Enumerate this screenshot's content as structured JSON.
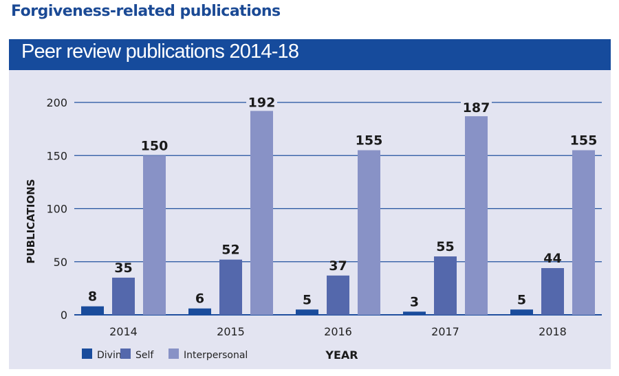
{
  "header": {
    "title": "Forgiveness-related publications"
  },
  "chart_data": {
    "type": "bar",
    "title": "Peer review publications 2014-18",
    "xlabel": "YEAR",
    "ylabel": "PUBLICATIONS",
    "ylim": [
      0,
      200
    ],
    "yticks": [
      0,
      50,
      100,
      150,
      200
    ],
    "grid": true,
    "legend_position": "bottom-left",
    "categories": [
      "2014",
      "2015",
      "2016",
      "2017",
      "2018"
    ],
    "series": [
      {
        "name": "Divine",
        "color": "#1a4c9c",
        "values": [
          8,
          6,
          5,
          3,
          5
        ]
      },
      {
        "name": "Self",
        "color": "#5468ac",
        "values": [
          35,
          52,
          37,
          55,
          44
        ]
      },
      {
        "name": "Interpersonal",
        "color": "#8892c6",
        "values": [
          150,
          192,
          155,
          187,
          155
        ]
      }
    ]
  }
}
